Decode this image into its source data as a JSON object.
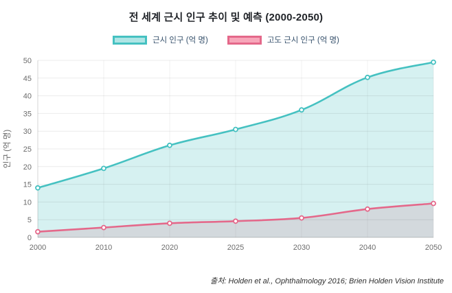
{
  "title": "전 세계 근시 인구 추이 및 예측 (2000-2050)",
  "source": "출처: Holden et al., Ophthalmology 2016; Brien Holden Vision Institute",
  "chart_data": {
    "type": "area",
    "title": "전 세계 근시 인구 추이 및 예측 (2000-2050)",
    "categories": [
      "2000",
      "2010",
      "2020",
      "2025",
      "2030",
      "2040",
      "2050"
    ],
    "series": [
      {
        "name": "근시 인구 (억 명)",
        "line_color": "#45c1c1",
        "fill_color": "rgba(69,193,193,0.22)",
        "legend_fill": "#afe5e5",
        "values": [
          14,
          19.5,
          26,
          30.5,
          36,
          45.2,
          49.5
        ]
      },
      {
        "name": "고도 근시 인구 (억 명)",
        "line_color": "#e4688a",
        "fill_color": "rgba(210,208,214,0.75)",
        "legend_fill": "#f7a6ba",
        "values": [
          1.6,
          2.8,
          4,
          4.6,
          5.5,
          8,
          9.6
        ]
      }
    ],
    "xlabel": "",
    "ylabel": "인구 (억 명)",
    "ylim": [
      0,
      50
    ],
    "ytick_step": 5,
    "grid": true,
    "legend_position": "top"
  }
}
